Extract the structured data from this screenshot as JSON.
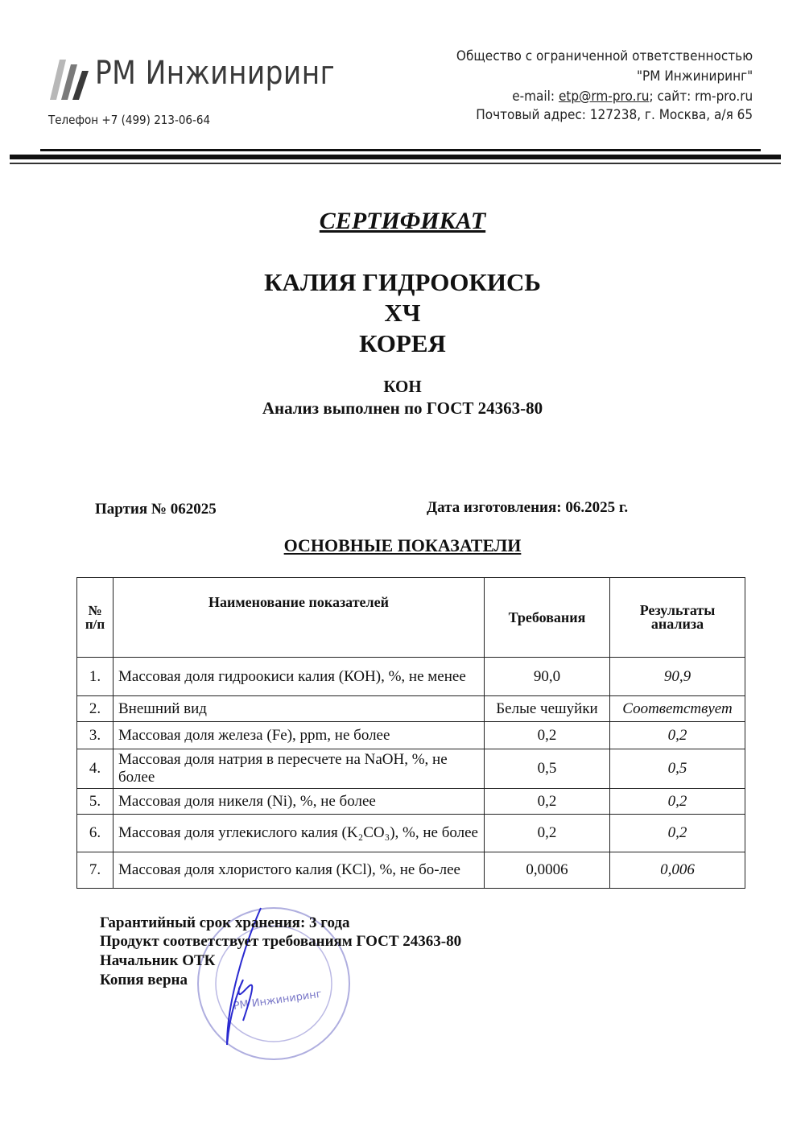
{
  "letterhead": {
    "logo_text": "РМ Инжиниринг",
    "phone": "Телефон +7 (499) 213-06-64",
    "company_line1": "Общество с ограниченной ответственностью",
    "company_line2": "\"РМ Инжиниринг\"",
    "email_label": "e-mail: ",
    "email": "etp@rm-pro.ru",
    "site": "; сайт: rm-pro.ru",
    "address": "Почтовый адрес: 127238, г. Москва, а/я 65"
  },
  "document": {
    "title": "СЕРТИФИКАТ",
    "product_name": "КАЛИЯ ГИДРООКИСЬ",
    "grade": "ХЧ",
    "country": "КОРЕЯ",
    "formula": "КОН",
    "analysis_standard": "Анализ выполнен по ГОСТ 24363-80",
    "batch": "Партия № 062025",
    "manufacture_date": "Дата изготовления: 06.2025 г.",
    "section_title": "ОСНОВНЫЕ ПОКАЗАТЕЛИ"
  },
  "table": {
    "headers": [
      "№ п/п",
      "Наименование показателей",
      "Требования",
      "Результаты анализа"
    ],
    "rows": [
      {
        "num": "1.",
        "name": "Массовая доля гидроокиси калия (КОН), %, не менее",
        "requirement": "90,0",
        "result": "90,9"
      },
      {
        "num": "2.",
        "name": "Внешний вид",
        "requirement": "Белые чешуйки",
        "result": "Соответствует"
      },
      {
        "num": "3.",
        "name": "Массовая доля железа (Fe), ppm, не более",
        "requirement": "0,2",
        "result": "0,2"
      },
      {
        "num": "4.",
        "name": "Массовая доля натрия в пересчете на NaOH, %, не более",
        "requirement": "0,5",
        "result": "0,5"
      },
      {
        "num": "5.",
        "name": "Массовая доля никеля (Ni), %, не более",
        "requirement": "0,2",
        "result": "0,2"
      },
      {
        "num": "6.",
        "name": "Массовая доля углекислого калия (K₂CO₃), %, не более",
        "requirement": "0,2",
        "result": "0,2"
      },
      {
        "num": "7.",
        "name": "Массовая доля хлористого калия (KCl), %, не бо-лее",
        "requirement": "0,0006",
        "result": "0,006"
      }
    ]
  },
  "footer": {
    "shelf_life": "Гарантийный срок хранения: 3 года",
    "compliance": "Продукт соответствует требованиям ГОСТ 24363-80",
    "qc_head": "Начальник ОТК",
    "copy_true": "Копия верна"
  },
  "stamp": {
    "text": "РМ Инжиниринг",
    "color": "#7a78c8"
  },
  "signature_color": "#2a2ad0"
}
